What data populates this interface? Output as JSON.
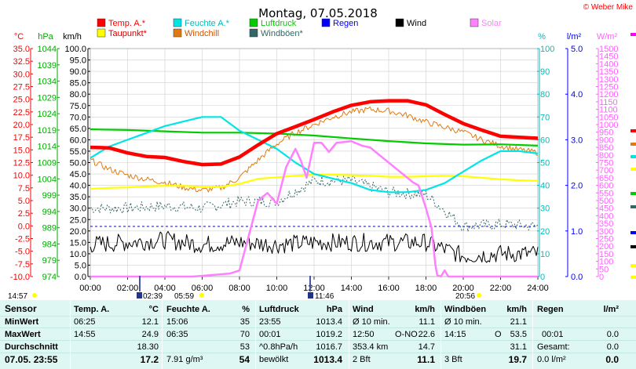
{
  "header": {
    "title": "Montag, 07.05.2018",
    "copyright": "© Weber Mike"
  },
  "legend": [
    {
      "label": "Temp. A.*",
      "color": "#ff0000"
    },
    {
      "label": "Feuchte A.*",
      "color": "#00e5e5"
    },
    {
      "label": "Luftdruck",
      "color": "#00cc00"
    },
    {
      "label": "Regen",
      "color": "#0000ff"
    },
    {
      "label": "Wind",
      "color": "#000000"
    },
    {
      "label": "Solar",
      "color": "#ff80ff"
    },
    {
      "label": "Taupunkt*",
      "color": "#ffff00"
    },
    {
      "label": "Windchill",
      "color": "#e07a10"
    },
    {
      "label": "Windböen*",
      "color": "#336666"
    }
  ],
  "axis_headers": {
    "temp": "°C",
    "pressure": "hPa",
    "wind": "km/h",
    "humidity": "%",
    "rain": "l/m²",
    "solar": "W/m²"
  },
  "chart_data": {
    "type": "line",
    "x_labels": [
      "00:00",
      "02:00",
      "04:00",
      "06:00",
      "08:00",
      "10:00",
      "12:00",
      "14:00",
      "16:00",
      "18:00",
      "20:00",
      "22:00",
      "24:00"
    ],
    "axes": {
      "temp": {
        "label": "°C",
        "min": -10,
        "max": 35,
        "ticks": [
          "35.0",
          "32.5",
          "30.0",
          "27.5",
          "25.0",
          "22.5",
          "20.0",
          "17.5",
          "15.0",
          "12.5",
          "10.0",
          "7.5",
          "5.0",
          "2.5",
          "0.0",
          "-2.5",
          "-5.0",
          "-7.5",
          "-10.0"
        ]
      },
      "pressure": {
        "label": "hPa",
        "min": 974,
        "max": 1044,
        "ticks": [
          "1044",
          "1039",
          "1034",
          "1029",
          "1024",
          "1019",
          "1014",
          "1009",
          "1004",
          "999",
          "994",
          "989",
          "984",
          "979",
          "974"
        ]
      },
      "wind": {
        "label": "km/h",
        "min": 0,
        "max": 100,
        "ticks": [
          "100.0",
          "95.0",
          "90.0",
          "85.0",
          "80.0",
          "75.0",
          "70.0",
          "65.0",
          "60.0",
          "55.0",
          "50.0",
          "45.0",
          "40.0",
          "35.0",
          "30.0",
          "25.0",
          "20.0",
          "15.0",
          "10.0",
          "5.0",
          "0.0"
        ]
      },
      "humidity": {
        "label": "%",
        "min": 0,
        "max": 100,
        "ticks": [
          "100",
          "90",
          "80",
          "70",
          "60",
          "50",
          "40",
          "30",
          "20",
          "10",
          "0"
        ]
      },
      "rain": {
        "label": "l/m²",
        "min": 0,
        "max": 5,
        "ticks": [
          "5.0",
          "4.0",
          "3.0",
          "2.0",
          "1.0",
          "0.0"
        ]
      },
      "solar": {
        "label": "W/m²",
        "min": 0,
        "max": 1500,
        "ticks": [
          "1500",
          "1450",
          "1400",
          "1350",
          "1300",
          "1250",
          "1200",
          "1150",
          "1100",
          "1050",
          "1000",
          "950",
          "900",
          "850",
          "800",
          "750",
          "700",
          "650",
          "600",
          "550",
          "500",
          "450",
          "400",
          "350",
          "300",
          "250",
          "200",
          "150",
          "100",
          "50",
          "0"
        ]
      }
    },
    "series": [
      {
        "name": "Temp. A.*",
        "axis": "temp",
        "color": "#ff0000",
        "width": 4.5,
        "x": [
          0,
          1,
          2,
          3,
          4,
          5,
          6,
          7,
          8,
          9,
          10,
          11,
          12,
          13,
          14,
          15,
          16,
          17,
          18,
          19,
          20,
          21,
          22,
          23,
          24
        ],
        "y": [
          15.5,
          15.4,
          14.4,
          13.7,
          13.5,
          12.7,
          12.1,
          12.2,
          13.6,
          16.0,
          18.2,
          19.6,
          21.0,
          22.5,
          23.8,
          24.5,
          24.7,
          24.7,
          23.9,
          22.0,
          20.2,
          18.9,
          17.7,
          17.5,
          17.3
        ]
      },
      {
        "name": "Feuchte A.*",
        "axis": "humidity",
        "color": "#00e5e5",
        "width": 2.2,
        "x": [
          0,
          1,
          2,
          3,
          4,
          5,
          6,
          7,
          8,
          9,
          10,
          11,
          12,
          13,
          14,
          15,
          16,
          17,
          18,
          19,
          20,
          21,
          22,
          23,
          24
        ],
        "y": [
          52,
          57,
          60,
          63,
          66,
          68,
          70,
          70,
          64,
          60,
          56,
          50,
          45,
          43,
          41,
          38,
          37,
          37,
          38,
          41,
          46,
          51,
          55,
          55,
          54
        ]
      },
      {
        "name": "Luftdruck",
        "axis": "pressure",
        "color": "#00cc00",
        "width": 2.2,
        "x": [
          0,
          2,
          4,
          6,
          8,
          10,
          12,
          14,
          16,
          18,
          20,
          22,
          24
        ],
        "y": [
          1019.2,
          1019.0,
          1018.6,
          1018.2,
          1018.2,
          1017.9,
          1017.3,
          1016.4,
          1015.6,
          1014.9,
          1014.5,
          1014.6,
          1014.2
        ]
      },
      {
        "name": "Taupunkt*",
        "axis": "temp",
        "color": "#ffff00",
        "width": 2.2,
        "x": [
          0,
          1,
          2,
          3,
          4,
          5,
          6,
          7,
          8,
          9,
          10,
          11,
          12,
          13,
          14,
          15,
          16,
          17,
          18,
          19,
          20,
          21,
          22,
          23,
          24
        ],
        "y": [
          7.3,
          7.5,
          7.6,
          7.8,
          7.9,
          7.9,
          7.7,
          7.7,
          8.3,
          9.3,
          9.6,
          9.9,
          10.1,
          10.1,
          10.0,
          9.9,
          9.7,
          9.7,
          9.8,
          9.9,
          9.8,
          9.5,
          9.2,
          9.0,
          8.9
        ]
      },
      {
        "name": "Windchill",
        "axis": "temp",
        "color": "#e07a10",
        "width": 1,
        "noise": 0.6,
        "x": [
          0,
          1,
          2,
          3,
          4,
          5,
          6,
          7,
          8,
          9,
          10,
          11,
          12,
          13,
          14,
          15,
          16,
          17,
          18,
          19,
          20,
          21,
          22,
          23,
          24
        ],
        "y": [
          13.0,
          11.2,
          10.0,
          9.2,
          8.6,
          7.6,
          7.0,
          7.5,
          9.5,
          13.0,
          16.2,
          18.4,
          20.0,
          21.5,
          22.5,
          23.0,
          22.7,
          21.8,
          20.5,
          19.5,
          18.5,
          17.0,
          15.8,
          15.0,
          14.5
        ]
      },
      {
        "name": "Windböen*",
        "axis": "wind",
        "color": "#336666",
        "width": 1,
        "dash": "2,2",
        "noise": 2.5,
        "x": [
          0,
          2,
          4,
          6,
          8,
          10,
          12,
          14,
          16,
          18,
          20,
          22,
          24
        ],
        "y": [
          30,
          30,
          31,
          30,
          33,
          33,
          42,
          42,
          37,
          36,
          22,
          23,
          22
        ]
      },
      {
        "name": "Wind",
        "axis": "wind",
        "color": "#000000",
        "width": 1,
        "noise": 4,
        "x": [
          0,
          2,
          4,
          6,
          8,
          10,
          12,
          14,
          16,
          18,
          20,
          22,
          24
        ],
        "y": [
          14,
          15,
          16,
          14,
          15,
          14,
          15,
          15,
          15,
          15,
          9,
          10,
          10
        ]
      },
      {
        "name": "Solar",
        "axis": "solar",
        "color": "#ff80ff",
        "width": 2.5,
        "x": [
          0,
          5.5,
          6.5,
          7.5,
          8,
          9,
          9.5,
          10,
          10.5,
          11,
          11.3,
          11.6,
          12,
          12.4,
          12.8,
          13.2,
          14,
          14.6,
          15,
          15.5,
          16,
          16.5,
          17,
          17.3,
          17.6,
          18,
          18.3,
          18.5,
          18.6,
          18.8,
          19,
          19.2,
          20,
          24
        ],
        "y": [
          0,
          0,
          10,
          20,
          40,
          500,
          550,
          480,
          720,
          840,
          760,
          650,
          880,
          880,
          820,
          880,
          890,
          860,
          850,
          800,
          750,
          700,
          650,
          620,
          600,
          450,
          320,
          80,
          10,
          0,
          40,
          0,
          0,
          0
        ]
      }
    ],
    "reference_line": {
      "name": "Regen",
      "axis": "wind",
      "y": 22,
      "color": "#0000ff"
    }
  },
  "bottom_times": {
    "sunrise_left": "14:57",
    "t1": "02:39",
    "t2": "05:59",
    "t3": "11:46",
    "t4": "20:56"
  },
  "table": {
    "sensor": {
      "header": "Sensor",
      "rows": [
        "MinWert",
        "MaxWert",
        "Durchschnitt",
        "07.05. 23:55"
      ]
    },
    "temp": {
      "header": "Temp. A.",
      "unit": "°C",
      "times": [
        "06:25",
        "14:55",
        "",
        ""
      ],
      "values": [
        "12.1",
        "24.9",
        "18.30",
        "17.2"
      ]
    },
    "hum": {
      "header": "Feuchte A.",
      "unit": "%",
      "times": [
        "15:06",
        "06:35",
        "",
        "7.91 g/m³"
      ],
      "values": [
        "35",
        "70",
        "53",
        "54"
      ]
    },
    "press": {
      "header": "Luftdruck",
      "unit": "hPa",
      "times": [
        "23:55",
        "00:01",
        "^0.8hPa/h",
        "bewölkt"
      ],
      "values": [
        "1013.4",
        "1019.2",
        "1016.7",
        "1013.4"
      ]
    },
    "wind": {
      "header": "Wind",
      "unit": "km/h",
      "labels": [
        "Ø 10 min.",
        "12:50",
        "353.4 km",
        "2 Bft"
      ],
      "dirs": [
        "",
        "O-NO",
        "",
        ""
      ],
      "values": [
        "11.1",
        "22.6",
        "14.7",
        "11.1"
      ]
    },
    "gust": {
      "header": "Windböen",
      "unit": "km/h",
      "labels": [
        "Ø 10 min.",
        "14:15",
        "",
        "3 Bft"
      ],
      "dirs": [
        "",
        "O",
        "",
        ""
      ],
      "values": [
        "21.1",
        "53.5",
        "31.1",
        "19.7"
      ]
    },
    "rain": {
      "header": "Regen",
      "unit": "l/m²",
      "labels": [
        "",
        "00:01",
        "Gesamt:",
        "0.0 l/m²"
      ],
      "values": [
        "",
        "0.0",
        "0.0",
        "0.0"
      ]
    }
  }
}
